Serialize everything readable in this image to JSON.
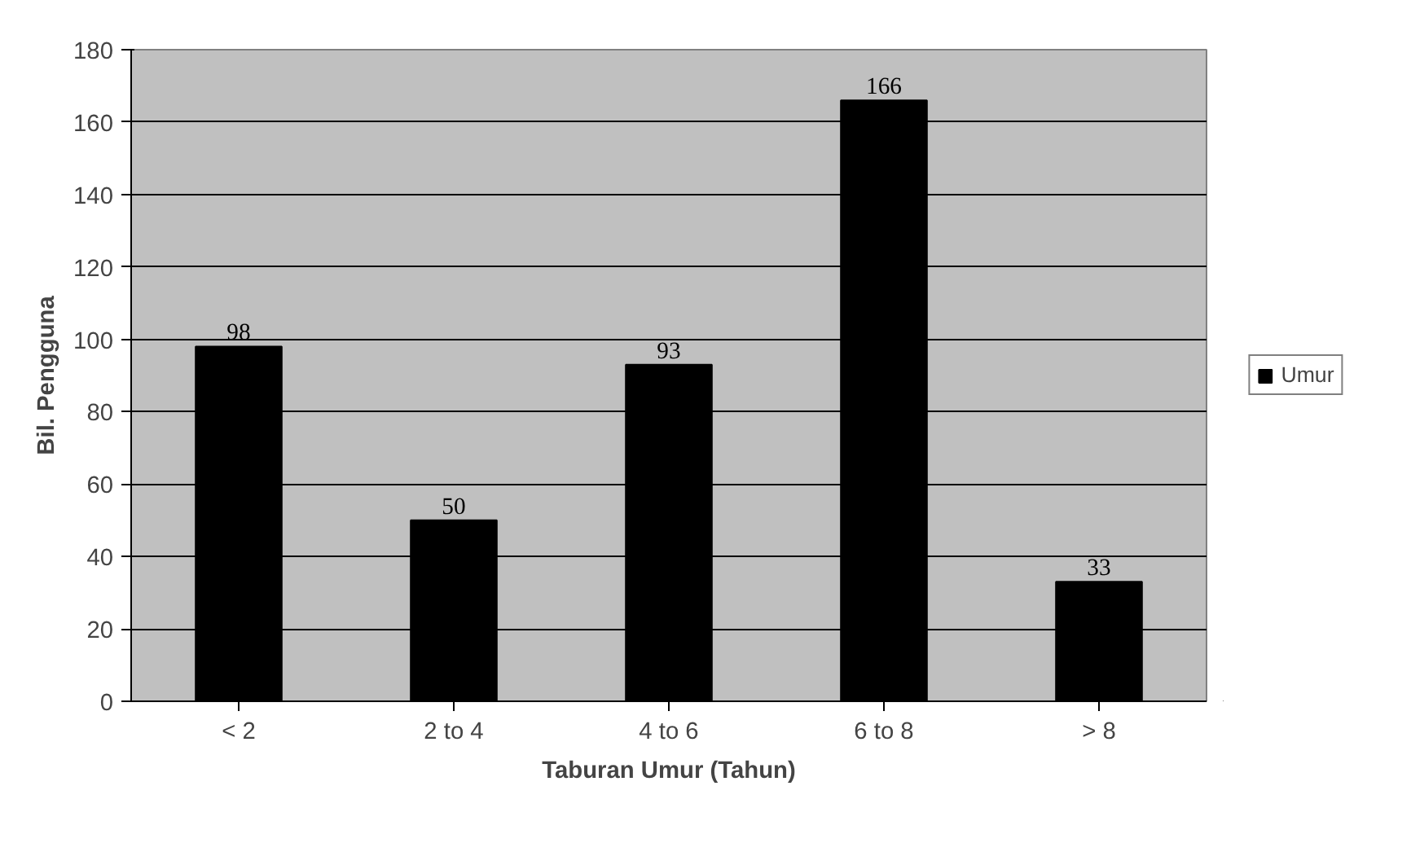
{
  "chart_data": {
    "type": "bar",
    "xlabel": "Taburan Umur (Tahun)",
    "ylabel": "Bil. Pengguna",
    "categories": [
      "< 2",
      "2 to 4",
      "4 to 6",
      "6 to 8",
      "> 8"
    ],
    "series": [
      {
        "name": "Umur",
        "color": "#000000",
        "values": [
          98,
          50,
          93,
          166,
          33
        ]
      }
    ],
    "ylim": [
      0,
      180
    ],
    "yticks": [
      0,
      20,
      40,
      60,
      80,
      100,
      120,
      140,
      160,
      180
    ],
    "grid": "y",
    "legend": "right",
    "data_labels": true
  }
}
